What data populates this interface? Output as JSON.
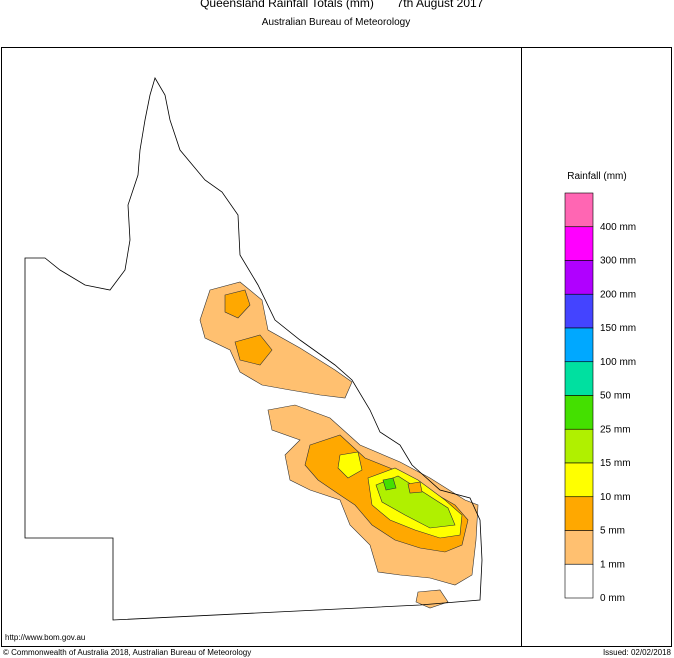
{
  "header": {
    "title": "Queensland Rainfall Totals (mm)",
    "date": "7th August 2017",
    "subtitle": "Australian Bureau of Meteorology"
  },
  "legend": {
    "title": "Rainfall (mm)",
    "colors": [
      "#ff66b3",
      "#ff00ff",
      "#b000ff",
      "#4444ff",
      "#00a8ff",
      "#00e0a0",
      "#44e000",
      "#b0f000",
      "#ffff00",
      "#ffa800",
      "#ffc070",
      "#ffffff"
    ],
    "labels": [
      "400 mm",
      "300 mm",
      "200 mm",
      "150 mm",
      "100 mm",
      "50 mm",
      "25 mm",
      "15 mm",
      "10 mm",
      "5 mm",
      "1 mm",
      "0 mm"
    ]
  },
  "footer": {
    "url": "http://www.bom.gov.au",
    "copyright": "© Commonwealth of Australia 2018, Australian Bureau of Meteorology",
    "issued": "Issued: 02/02/2018"
  }
}
